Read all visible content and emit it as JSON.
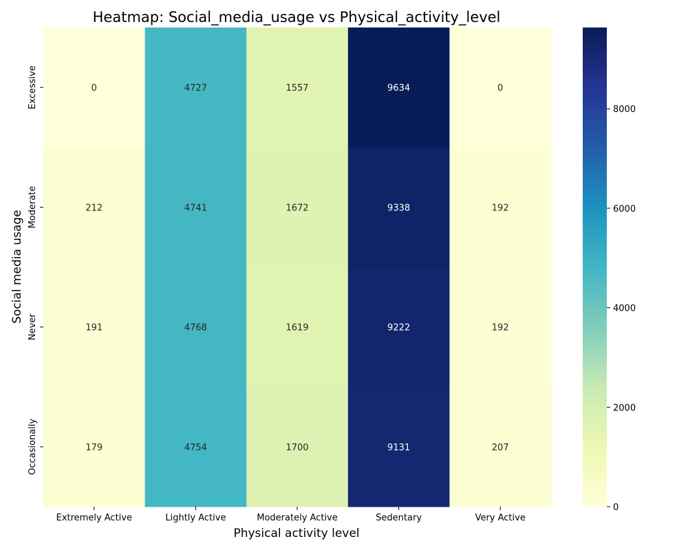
{
  "chart_data": {
    "type": "heatmap",
    "title": "Heatmap: Social_media_usage vs Physical_activity_level",
    "xlabel": "Physical activity level",
    "ylabel": "Social media usage",
    "x_categories": [
      "Extremely Active",
      "Lightly Active",
      "Moderately Active",
      "Sedentary",
      "Very Active"
    ],
    "y_categories": [
      "Excessive",
      "Moderate",
      "Never",
      "Occasionally"
    ],
    "values": [
      [
        0,
        4727,
        1557,
        9634,
        0
      ],
      [
        212,
        4741,
        1672,
        9338,
        192
      ],
      [
        191,
        4768,
        1619,
        9222,
        192
      ],
      [
        179,
        4754,
        1700,
        9131,
        207
      ]
    ],
    "colormap": "YlGnBu",
    "vmin": 0,
    "vmax": 9634,
    "colorbar_ticks": [
      0,
      2000,
      4000,
      6000,
      8000
    ],
    "grid": false,
    "legend": "colorbar-right"
  }
}
